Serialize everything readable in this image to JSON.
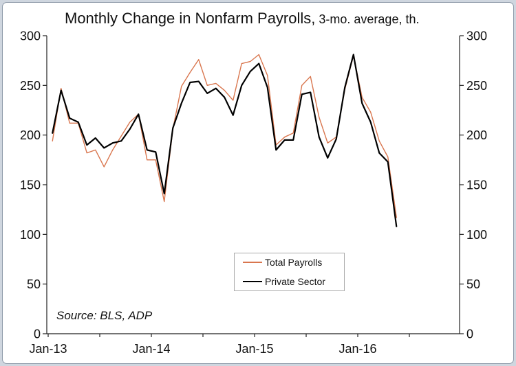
{
  "chart_data": {
    "type": "line",
    "title": "Monthly Change in Nonfarm Payrolls,",
    "subtitle": "3-mo. average, th.",
    "x": [
      "Jan-13",
      "Feb-13",
      "Mar-13",
      "Apr-13",
      "May-13",
      "Jun-13",
      "Jul-13",
      "Aug-13",
      "Sep-13",
      "Oct-13",
      "Nov-13",
      "Dec-13",
      "Jan-14",
      "Feb-14",
      "Mar-14",
      "Apr-14",
      "May-14",
      "Jun-14",
      "Jul-14",
      "Aug-14",
      "Sep-14",
      "Oct-14",
      "Nov-14",
      "Dec-14",
      "Jan-15",
      "Feb-15",
      "Mar-15",
      "Apr-15",
      "May-15",
      "Jun-15",
      "Jul-15",
      "Aug-15",
      "Sep-15",
      "Oct-15",
      "Nov-15",
      "Dec-15",
      "Jan-16",
      "Feb-16",
      "Mar-16",
      "Apr-16",
      "May-16"
    ],
    "x_tick_labels": [
      "Jan-13",
      "Jan-14",
      "Jan-15",
      "Jan-16"
    ],
    "ylim": [
      0,
      300
    ],
    "y_ticks": [
      0,
      50,
      100,
      150,
      200,
      250,
      300
    ],
    "y2lim": [
      0,
      300
    ],
    "y2_ticks": [
      0,
      50,
      100,
      150,
      200,
      250,
      300
    ],
    "grid": false,
    "legend_position": "bottom-center",
    "annotation": "Source: BLS, ADP",
    "series": [
      {
        "name": "Total Payrolls",
        "color": "#d9764e",
        "values": [
          194,
          247,
          212,
          212,
          182,
          185,
          168,
          185,
          199,
          213,
          221,
          175,
          175,
          133,
          206,
          249,
          263,
          276,
          250,
          252,
          245,
          235,
          272,
          274,
          281,
          260,
          190,
          198,
          202,
          250,
          259,
          218,
          192,
          198,
          246,
          280,
          238,
          223,
          194,
          178,
          117
        ]
      },
      {
        "name": "Private Sector",
        "color": "#000000",
        "values": [
          202,
          245,
          217,
          213,
          190,
          197,
          187,
          192,
          194,
          206,
          221,
          185,
          183,
          141,
          207,
          232,
          253,
          254,
          242,
          247,
          238,
          220,
          250,
          264,
          272,
          248,
          185,
          195,
          195,
          241,
          243,
          198,
          177,
          196,
          248,
          281,
          232,
          213,
          182,
          173,
          108
        ]
      }
    ]
  }
}
